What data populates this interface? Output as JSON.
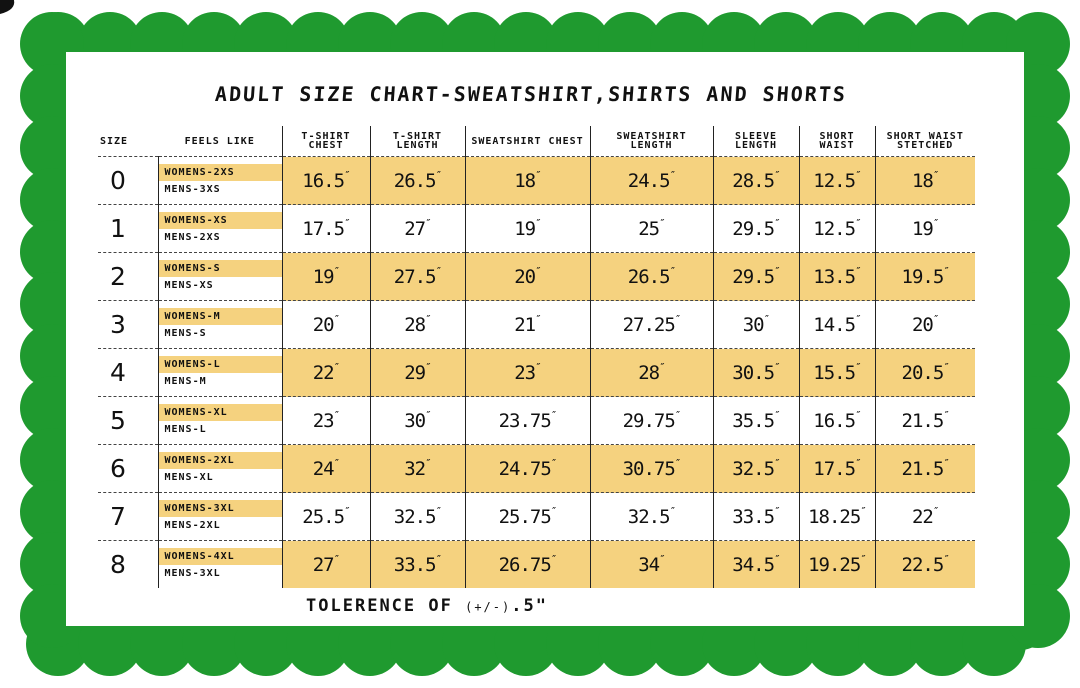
{
  "title": "ADULT SIZE CHART-SWEATSHIRT,SHIRTS AND SHORTS",
  "colors": {
    "frame": "#1f9a2f",
    "highlight": "#f5d27f",
    "card": "#ffffff"
  },
  "headers": [
    "SIZE",
    "FEELS LIKE",
    "T-SHIRT CHEST",
    "T-SHIRT LENGTH",
    "SWEATSHIRT CHEST",
    "SWEATSHIRT LENGTH",
    "SLEEVE LENGTH",
    "SHORT WAIST",
    "SHORT WAIST STETCHED"
  ],
  "rows": [
    {
      "size": "0",
      "womens": "WOMENS-2XS",
      "mens": "MENS-3XS",
      "values": [
        "16.5",
        "26.5",
        "18",
        "24.5",
        "28.5",
        "12.5",
        "18"
      ]
    },
    {
      "size": "1",
      "womens": "WOMENS-XS",
      "mens": "MENS-2XS",
      "values": [
        "17.5",
        "27",
        "19",
        "25",
        "29.5",
        "12.5",
        "19"
      ]
    },
    {
      "size": "2",
      "womens": "WOMENS-S",
      "mens": "MENS-XS",
      "values": [
        "19",
        "27.5",
        "20",
        "26.5",
        "29.5",
        "13.5",
        "19.5"
      ]
    },
    {
      "size": "3",
      "womens": "WOMENS-M",
      "mens": "MENS-S",
      "values": [
        "20",
        "28",
        "21",
        "27.25",
        "30",
        "14.5",
        "20"
      ]
    },
    {
      "size": "4",
      "womens": "WOMENS-L",
      "mens": "MENS-M",
      "values": [
        "22",
        "29",
        "23",
        "28",
        "30.5",
        "15.5",
        "20.5"
      ]
    },
    {
      "size": "5",
      "womens": "WOMENS-XL",
      "mens": "MENS-L",
      "values": [
        "23",
        "30",
        "23.75",
        "29.75",
        "35.5",
        "16.5",
        "21.5"
      ]
    },
    {
      "size": "6",
      "womens": "WOMENS-2XL",
      "mens": "MENS-XL",
      "values": [
        "24",
        "32",
        "24.75",
        "30.75",
        "32.5",
        "17.5",
        "21.5"
      ]
    },
    {
      "size": "7",
      "womens": "WOMENS-3XL",
      "mens": "MENS-2XL",
      "values": [
        "25.5",
        "32.5",
        "25.75",
        "32.5",
        "33.5",
        "18.25",
        "22"
      ]
    },
    {
      "size": "8",
      "womens": "WOMENS-4XL",
      "mens": "MENS-3XL",
      "values": [
        "27",
        "33.5",
        "26.75",
        "34",
        "34.5",
        "19.25",
        "22.5"
      ]
    }
  ],
  "tolerance": {
    "label": "TOLERENCE OF",
    "paren": "(+/-)",
    "value": ".5\""
  }
}
